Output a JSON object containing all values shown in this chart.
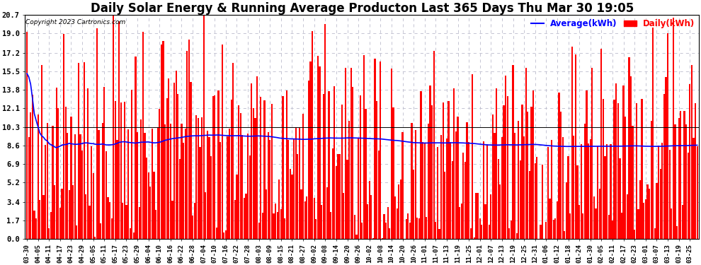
{
  "title": "Daily Solar Energy & Running Average Producton Last 365 Days Thu Mar 30 19:05",
  "copyright": "Copyright 2023 Cartronics.com",
  "ylabel_avg": "Average(kWh)",
  "ylabel_daily": "Daily(kWh)",
  "yticks": [
    0.0,
    1.7,
    3.4,
    5.2,
    6.9,
    8.6,
    10.3,
    12.1,
    13.8,
    15.5,
    17.2,
    19.0,
    20.7
  ],
  "ymax": 20.7,
  "ymin": 0.0,
  "bar_color": "#ff0000",
  "avg_color": "#0000ff",
  "hline_color": "#000000",
  "background_color": "#ffffff",
  "grid_color": "#bbbbcc",
  "title_fontsize": 12,
  "dates": [
    "03-30",
    "04-05",
    "04-11",
    "04-17",
    "04-23",
    "04-29",
    "05-05",
    "05-11",
    "05-17",
    "05-23",
    "05-29",
    "06-04",
    "06-10",
    "06-16",
    "06-22",
    "06-28",
    "07-04",
    "07-10",
    "07-16",
    "07-22",
    "07-28",
    "08-03",
    "08-09",
    "08-15",
    "08-21",
    "08-27",
    "09-02",
    "09-08",
    "09-14",
    "09-20",
    "09-26",
    "10-02",
    "10-08",
    "10-14",
    "10-20",
    "10-26",
    "11-01",
    "11-07",
    "11-13",
    "11-19",
    "11-25",
    "12-01",
    "12-07",
    "12-13",
    "12-19",
    "12-25",
    "12-31",
    "01-06",
    "01-12",
    "01-18",
    "01-24",
    "01-30",
    "02-05",
    "02-11",
    "02-17",
    "02-23",
    "03-01",
    "03-07",
    "03-13",
    "03-19",
    "03-25"
  ],
  "n_bars": 365
}
